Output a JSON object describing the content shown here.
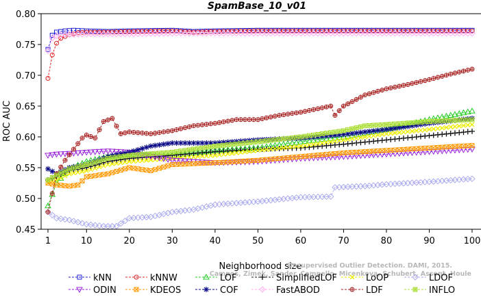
{
  "chart_data": {
    "type": "line",
    "title": "SpamBase_10_v01",
    "xlabel": "Neighborhood size",
    "ylabel": "ROC AUC",
    "xlim": [
      0,
      101
    ],
    "ylim": [
      0.45,
      0.8
    ],
    "xticks": [
      1,
      10,
      20,
      30,
      40,
      50,
      60,
      70,
      80,
      90,
      100
    ],
    "yticks": [
      "0.45",
      "0.50",
      "0.55",
      "0.60",
      "0.65",
      "0.70",
      "0.75",
      "0.80"
    ],
    "grid": false,
    "legend_position": "bottom",
    "watermark": "Campos, Zimek, Sander, Campello, Micenkova, Schubert, Assent, Houle\nUnsupervised Outlier Detection. DAMI, 2015.",
    "series": [
      {
        "name": "kNN",
        "color": "#1f1fd6",
        "marker": "square",
        "line": "dash",
        "points": [
          [
            1,
            0.742
          ],
          [
            2,
            0.765
          ],
          [
            3,
            0.77
          ],
          [
            5,
            0.772
          ],
          [
            7,
            0.773
          ],
          [
            10,
            0.772
          ],
          [
            15,
            0.771
          ],
          [
            20,
            0.772
          ],
          [
            30,
            0.773
          ],
          [
            35,
            0.771
          ],
          [
            40,
            0.772
          ],
          [
            50,
            0.773
          ],
          [
            60,
            0.773
          ],
          [
            70,
            0.773
          ],
          [
            80,
            0.773
          ],
          [
            90,
            0.773
          ],
          [
            100,
            0.773
          ]
        ]
      },
      {
        "name": "kNNW",
        "color": "#e02020",
        "marker": "circle",
        "line": "dash",
        "points": [
          [
            1,
            0.695
          ],
          [
            2,
            0.733
          ],
          [
            3,
            0.752
          ],
          [
            4,
            0.76
          ],
          [
            6,
            0.766
          ],
          [
            8,
            0.769
          ],
          [
            10,
            0.77
          ],
          [
            15,
            0.77
          ],
          [
            20,
            0.771
          ],
          [
            30,
            0.772
          ],
          [
            35,
            0.77
          ],
          [
            40,
            0.771
          ],
          [
            50,
            0.772
          ],
          [
            60,
            0.772
          ],
          [
            70,
            0.772
          ],
          [
            80,
            0.772
          ],
          [
            90,
            0.772
          ],
          [
            100,
            0.772
          ]
        ]
      },
      {
        "name": "LOF",
        "color": "#22cc22",
        "marker": "triangle-up",
        "line": "dash",
        "points": [
          [
            1,
            0.488
          ],
          [
            3,
            0.525
          ],
          [
            6,
            0.548
          ],
          [
            10,
            0.56
          ],
          [
            15,
            0.568
          ],
          [
            20,
            0.572
          ],
          [
            30,
            0.57
          ],
          [
            40,
            0.578
          ],
          [
            50,
            0.582
          ],
          [
            60,
            0.592
          ],
          [
            70,
            0.6
          ],
          [
            80,
            0.612
          ],
          [
            90,
            0.628
          ],
          [
            100,
            0.642
          ]
        ]
      },
      {
        "name": "SimplifiedLOF",
        "color": "#111111",
        "marker": "plus",
        "line": "dash",
        "points": [
          [
            1,
            0.53
          ],
          [
            3,
            0.535
          ],
          [
            6,
            0.545
          ],
          [
            10,
            0.55
          ],
          [
            15,
            0.56
          ],
          [
            20,
            0.565
          ],
          [
            30,
            0.57
          ],
          [
            40,
            0.576
          ],
          [
            50,
            0.58
          ],
          [
            60,
            0.582
          ],
          [
            70,
            0.588
          ],
          [
            80,
            0.595
          ],
          [
            90,
            0.602
          ],
          [
            100,
            0.609
          ]
        ]
      },
      {
        "name": "LoOP",
        "color": "#eeee00",
        "marker": "x",
        "line": "dash",
        "points": [
          [
            1,
            0.525
          ],
          [
            3,
            0.53
          ],
          [
            6,
            0.54
          ],
          [
            10,
            0.545
          ],
          [
            15,
            0.555
          ],
          [
            20,
            0.56
          ],
          [
            30,
            0.565
          ],
          [
            40,
            0.57
          ],
          [
            50,
            0.578
          ],
          [
            60,
            0.585
          ],
          [
            70,
            0.595
          ],
          [
            80,
            0.605
          ],
          [
            90,
            0.612
          ],
          [
            100,
            0.62
          ]
        ]
      },
      {
        "name": "LDOF",
        "color": "#aaaaee",
        "marker": "diamond",
        "line": "dash",
        "points": [
          [
            1,
            0.478
          ],
          [
            3,
            0.468
          ],
          [
            6,
            0.465
          ],
          [
            10,
            0.458
          ],
          [
            14,
            0.455
          ],
          [
            17,
            0.455
          ],
          [
            20,
            0.468
          ],
          [
            25,
            0.47
          ],
          [
            30,
            0.478
          ],
          [
            35,
            0.482
          ],
          [
            40,
            0.49
          ],
          [
            50,
            0.495
          ],
          [
            60,
            0.502
          ],
          [
            67,
            0.503
          ],
          [
            68,
            0.518
          ],
          [
            75,
            0.52
          ],
          [
            80,
            0.523
          ],
          [
            90,
            0.527
          ],
          [
            100,
            0.532
          ]
        ]
      },
      {
        "name": "ODIN",
        "color": "#9922dd",
        "marker": "triangle-down",
        "line": "dash",
        "points": [
          [
            1,
            0.57
          ],
          [
            3,
            0.572
          ],
          [
            6,
            0.573
          ],
          [
            10,
            0.575
          ],
          [
            15,
            0.577
          ],
          [
            20,
            0.575
          ],
          [
            30,
            0.562
          ],
          [
            40,
            0.558
          ],
          [
            50,
            0.56
          ],
          [
            60,
            0.565
          ],
          [
            70,
            0.568
          ],
          [
            80,
            0.572
          ],
          [
            90,
            0.576
          ],
          [
            100,
            0.58
          ]
        ]
      },
      {
        "name": "KDEOS",
        "color": "#ff9900",
        "marker": "square-x",
        "line": "dash",
        "points": [
          [
            1,
            0.525
          ],
          [
            3,
            0.522
          ],
          [
            6,
            0.52
          ],
          [
            8,
            0.522
          ],
          [
            10,
            0.535
          ],
          [
            15,
            0.54
          ],
          [
            20,
            0.55
          ],
          [
            25,
            0.545
          ],
          [
            30,
            0.555
          ],
          [
            40,
            0.558
          ],
          [
            50,
            0.562
          ],
          [
            60,
            0.568
          ],
          [
            70,
            0.574
          ],
          [
            80,
            0.578
          ],
          [
            90,
            0.582
          ],
          [
            100,
            0.586
          ]
        ]
      },
      {
        "name": "COF",
        "color": "#0a0a88",
        "marker": "star",
        "line": "dash",
        "points": [
          [
            1,
            0.548
          ],
          [
            3,
            0.54
          ],
          [
            6,
            0.55
          ],
          [
            10,
            0.555
          ],
          [
            15,
            0.568
          ],
          [
            20,
            0.575
          ],
          [
            25,
            0.585
          ],
          [
            30,
            0.59
          ],
          [
            40,
            0.59
          ],
          [
            50,
            0.595
          ],
          [
            60,
            0.598
          ],
          [
            70,
            0.604
          ],
          [
            80,
            0.612
          ],
          [
            90,
            0.622
          ],
          [
            100,
            0.63
          ]
        ]
      },
      {
        "name": "FastABOD",
        "color": "#ffaaee",
        "marker": "diamond",
        "line": "dash",
        "points": [
          [
            1,
            0.74
          ],
          [
            2,
            0.76
          ],
          [
            3,
            0.764
          ],
          [
            5,
            0.766
          ],
          [
            10,
            0.767
          ],
          [
            20,
            0.767
          ],
          [
            30,
            0.768
          ],
          [
            40,
            0.768
          ],
          [
            50,
            0.768
          ],
          [
            60,
            0.768
          ],
          [
            70,
            0.768
          ],
          [
            80,
            0.768
          ],
          [
            90,
            0.768
          ],
          [
            100,
            0.768
          ]
        ]
      },
      {
        "name": "LDF",
        "color": "#aa2222",
        "marker": "circle-plus",
        "line": "dash",
        "points": [
          [
            1,
            0.478
          ],
          [
            2,
            0.508
          ],
          [
            3,
            0.54
          ],
          [
            5,
            0.562
          ],
          [
            7,
            0.58
          ],
          [
            9,
            0.598
          ],
          [
            10,
            0.603
          ],
          [
            12,
            0.598
          ],
          [
            14,
            0.625
          ],
          [
            16,
            0.63
          ],
          [
            18,
            0.605
          ],
          [
            20,
            0.608
          ],
          [
            25,
            0.605
          ],
          [
            30,
            0.61
          ],
          [
            35,
            0.618
          ],
          [
            40,
            0.622
          ],
          [
            45,
            0.628
          ],
          [
            50,
            0.628
          ],
          [
            55,
            0.635
          ],
          [
            60,
            0.64
          ],
          [
            67,
            0.65
          ],
          [
            68,
            0.635
          ],
          [
            70,
            0.65
          ],
          [
            75,
            0.668
          ],
          [
            80,
            0.678
          ],
          [
            85,
            0.685
          ],
          [
            90,
            0.693
          ],
          [
            95,
            0.702
          ],
          [
            100,
            0.71
          ]
        ]
      },
      {
        "name": "INFLO",
        "color": "#aadd33",
        "marker": "square-star",
        "line": "dash",
        "points": [
          [
            1,
            0.53
          ],
          [
            3,
            0.538
          ],
          [
            6,
            0.548
          ],
          [
            10,
            0.555
          ],
          [
            15,
            0.565
          ],
          [
            20,
            0.57
          ],
          [
            30,
            0.575
          ],
          [
            40,
            0.585
          ],
          [
            50,
            0.592
          ],
          [
            60,
            0.6
          ],
          [
            70,
            0.61
          ],
          [
            75,
            0.618
          ],
          [
            80,
            0.62
          ],
          [
            90,
            0.625
          ],
          [
            100,
            0.628
          ]
        ]
      }
    ]
  }
}
